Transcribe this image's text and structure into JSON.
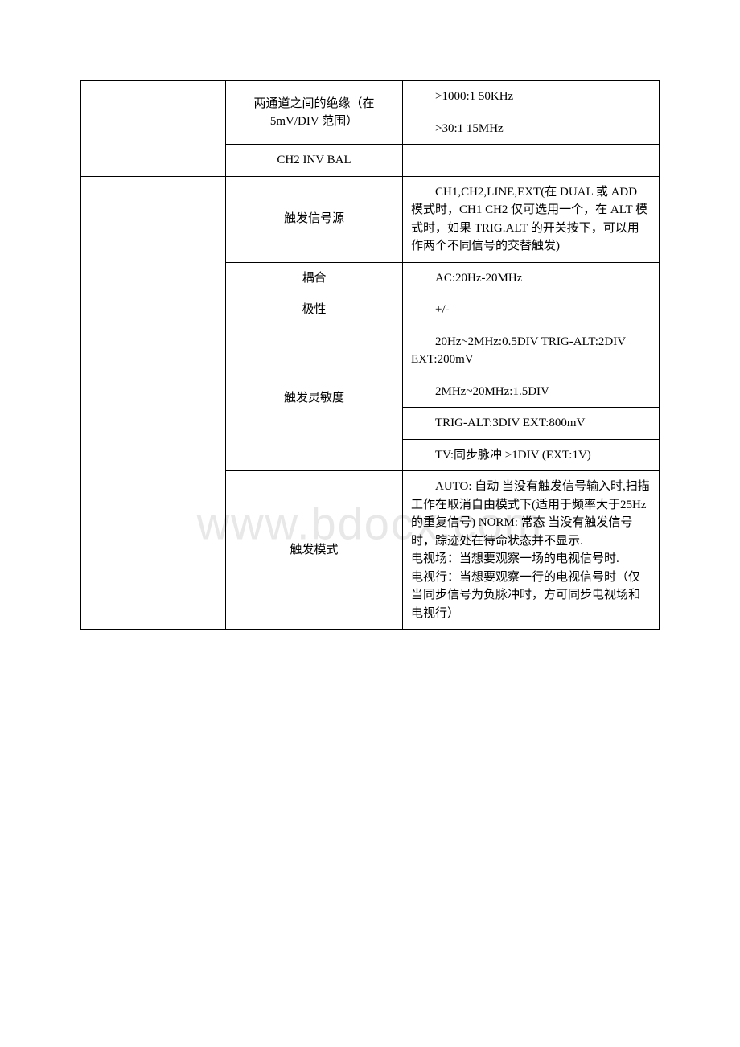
{
  "watermark": "www.bdocx.com",
  "table": {
    "rows": [
      {
        "col1": "",
        "col2": "两通道之间的绝缘（在 5mV/DIV 范围）",
        "col3_items": [
          ">1000:1 50KHz",
          ">30:1 15MHz"
        ],
        "col1_rowspan": 3,
        "col2_rowspan": 2
      },
      {
        "col2": "CH2 INV BAL",
        "col3": ""
      },
      {
        "col1": "",
        "col2": "触发信号源",
        "col3": "CH1,CH2,LINE,EXT(在 DUAL 或 ADD 模式时，CH1 CH2 仅可选用一个，在 ALT 模式时，如果 TRIG.ALT 的开关按下，可以用作两个不同信号的交替触发)",
        "col1_rowspan": 8
      },
      {
        "col2": "耦合",
        "col3": "AC:20Hz-20MHz"
      },
      {
        "col2": "极性",
        "col3": "+/-"
      },
      {
        "col2": "触发灵敏度",
        "col3_items": [
          "20Hz~2MHz:0.5DIV TRIG-ALT:2DIV EXT:200mV",
          "2MHz~20MHz:1.5DIV",
          "TRIG-ALT:3DIV EXT:800mV",
          "TV:同步脉冲 >1DIV (EXT:1V)"
        ],
        "col2_rowspan": 4
      },
      {
        "col2": "触发模式",
        "col3": "AUTO: 自动 当没有触发信号输入时,扫描工作在取消自由模式下(适用于频率大于25Hz 的重复信号) NORM: 常态 当没有触发信号时，踪迹处在待命状态并不显示.\n电视场：当想要观察一场的电视信号时.\n电视行：当想要观察一行的电视信号时（仅当同步信号为负脉冲时，方可同步电视场和电视行）"
      }
    ]
  }
}
